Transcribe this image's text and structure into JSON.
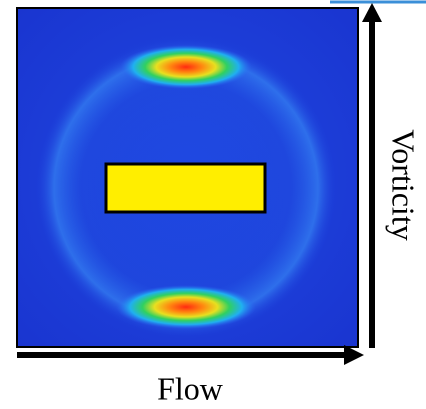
{
  "labels": {
    "flow": "Flow",
    "vorticity": "Vorticity"
  }
}
